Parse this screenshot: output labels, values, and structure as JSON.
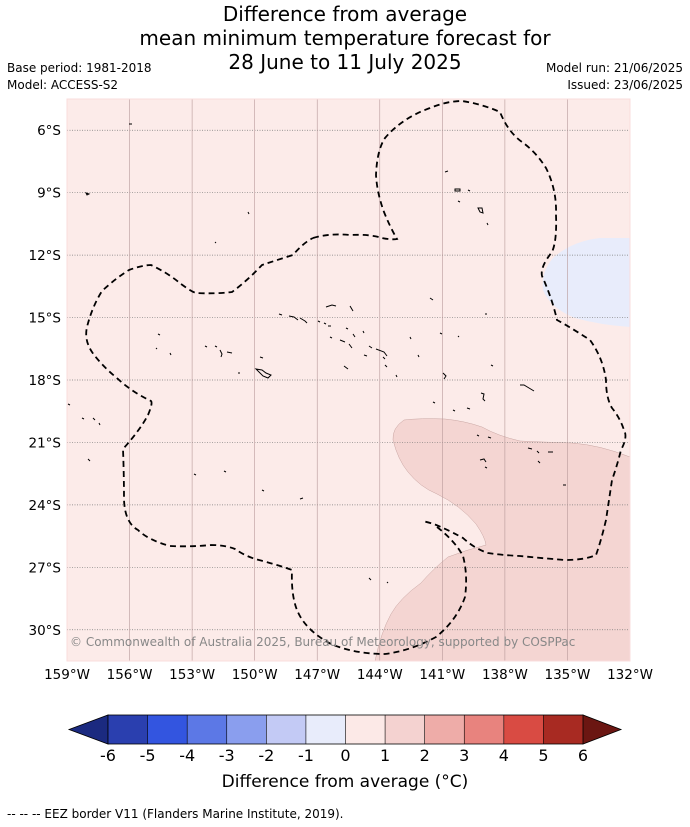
{
  "title": {
    "line1": "Difference from average",
    "line2": "mean minimum temperature forecast for",
    "line3": "28 June to 11 July 2025"
  },
  "meta_left": {
    "base_period": "Base period: 1981-2018",
    "model": "Model: ACCESS-S2"
  },
  "meta_right": {
    "model_run": "Model run: 21/06/2025",
    "issued": "Issued: 23/06/2025"
  },
  "map": {
    "extent": {
      "lon": [
        -159,
        -132
      ],
      "lat": [
        -31.5,
        -4.5
      ]
    },
    "lat_ticks": [
      {
        "value": -6,
        "label": "6°S"
      },
      {
        "value": -9,
        "label": "9°S"
      },
      {
        "value": -12,
        "label": "12°S"
      },
      {
        "value": -15,
        "label": "15°S"
      },
      {
        "value": -18,
        "label": "18°S"
      },
      {
        "value": -21,
        "label": "21°S"
      },
      {
        "value": -24,
        "label": "24°S"
      },
      {
        "value": -27,
        "label": "27°S"
      },
      {
        "value": -30,
        "label": "30°S"
      }
    ],
    "lon_ticks": [
      {
        "value": -159,
        "label": "159°W"
      },
      {
        "value": -156,
        "label": "156°W"
      },
      {
        "value": -153,
        "label": "153°W"
      },
      {
        "value": -150,
        "label": "150°W"
      },
      {
        "value": -147,
        "label": "147°W"
      },
      {
        "value": -144,
        "label": "144°W"
      },
      {
        "value": -141,
        "label": "141°W"
      },
      {
        "value": -138,
        "label": "138°W"
      },
      {
        "value": -135,
        "label": "135°W"
      },
      {
        "value": -132,
        "label": "132°W"
      }
    ],
    "background_class": "0 to 1",
    "copyright": "© Commonwealth of Australia 2025, Bureau of Meteorology, supported by COSPPac"
  },
  "colorbar": {
    "ticks": [
      "-6",
      "-5",
      "-4",
      "-3",
      "-2",
      "-1",
      "0",
      "1",
      "2",
      "3",
      "4",
      "5",
      "6"
    ],
    "colors": [
      "#2a3faf",
      "#3355e0",
      "#5c78e6",
      "#8a9eee",
      "#c3caf5",
      "#e8ecfb",
      "#fce9e7",
      "#f4d2d0",
      "#eeaca8",
      "#e8837e",
      "#d94b43",
      "#a82a22"
    ],
    "extend_low": "#1b2a80",
    "extend_high": "#6b1612",
    "label": "Difference from average (°C)"
  },
  "footnote": "-- -- -- EEZ border V11 (Flanders Marine Institute, 2019)."
}
